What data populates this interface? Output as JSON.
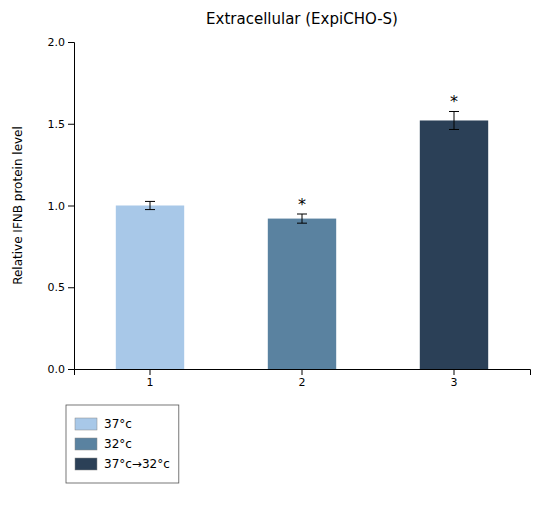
{
  "chart_data": {
    "type": "bar",
    "title": "Extracellular (ExpiCHO-S)",
    "ylabel": "Relative IFNB protein level",
    "categories": [
      "1",
      "2",
      "3"
    ],
    "values": [
      1.0,
      0.92,
      1.52
    ],
    "errors": [
      0.025,
      0.028,
      0.055
    ],
    "significance": [
      null,
      "*",
      "*"
    ],
    "colors": [
      "#a8c8e8",
      "#5a82a0",
      "#2b4057"
    ],
    "ylim": [
      0.0,
      2.0
    ],
    "yticks": [
      {
        "value": 0.0,
        "label": "0.0"
      },
      {
        "value": 0.5,
        "label": "0.5"
      },
      {
        "value": 1.0,
        "label": "1.0"
      },
      {
        "value": 1.5,
        "label": "1.5"
      },
      {
        "value": 2.0,
        "label": "2.0"
      }
    ],
    "legend_labels": [
      "37°c",
      "32°c",
      "37°c→32°c"
    ],
    "legend": "below",
    "grid": false
  }
}
